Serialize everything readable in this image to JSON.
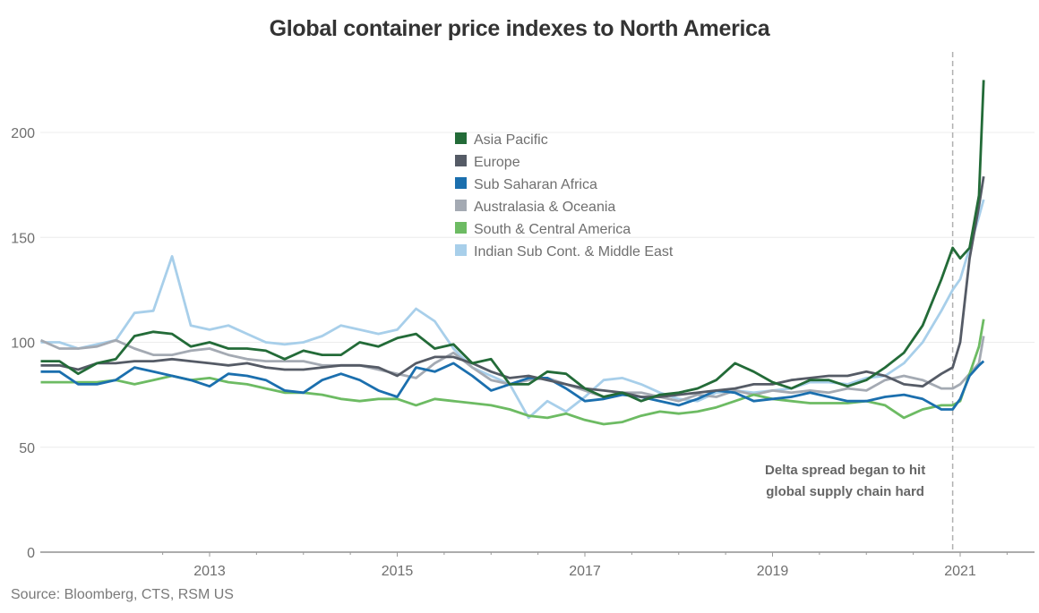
{
  "chart_data": {
    "type": "line",
    "title": "Global container price indexes to North America",
    "source": "Source: Bloomberg, CTS, RSM US",
    "xlabel": "",
    "ylabel": "",
    "xlim": [
      2011.2,
      2021.8
    ],
    "ylim": [
      0,
      230
    ],
    "x_ticks": [
      2013,
      2015,
      2017,
      2019,
      2021
    ],
    "x_tick_labels": [
      "2013",
      "2015",
      "2017",
      "2019",
      "2021"
    ],
    "y_ticks": [
      0,
      50,
      100,
      150,
      200
    ],
    "y_tick_labels": [
      "0",
      "50",
      "100",
      "150",
      "200"
    ],
    "grid": "horizontal",
    "legend_position": "top-center",
    "annotation": {
      "x": 2020.92,
      "lines": [
        "Delta spread began to hit",
        "global supply chain hard"
      ],
      "style": "dashed-vertical"
    },
    "x": [
      2011.2,
      2011.4,
      2011.6,
      2011.8,
      2012.0,
      2012.2,
      2012.4,
      2012.6,
      2012.8,
      2013.0,
      2013.2,
      2013.4,
      2013.6,
      2013.8,
      2014.0,
      2014.2,
      2014.4,
      2014.6,
      2014.8,
      2015.0,
      2015.2,
      2015.4,
      2015.6,
      2015.8,
      2016.0,
      2016.2,
      2016.4,
      2016.6,
      2016.8,
      2017.0,
      2017.2,
      2017.4,
      2017.6,
      2017.8,
      2018.0,
      2018.2,
      2018.4,
      2018.6,
      2018.8,
      2019.0,
      2019.2,
      2019.4,
      2019.6,
      2019.8,
      2020.0,
      2020.2,
      2020.4,
      2020.6,
      2020.8,
      2020.92,
      2021.0,
      2021.1,
      2021.2,
      2021.25
    ],
    "series": [
      {
        "name": "Asia Pacific",
        "color": "#236b38",
        "values": [
          91,
          91,
          85,
          90,
          92,
          103,
          105,
          104,
          98,
          100,
          97,
          97,
          96,
          92,
          96,
          94,
          94,
          100,
          98,
          102,
          104,
          97,
          99,
          90,
          92,
          80,
          80,
          86,
          85,
          78,
          74,
          76,
          72,
          75,
          76,
          78,
          82,
          90,
          86,
          81,
          78,
          82,
          82,
          79,
          82,
          88,
          95,
          108,
          130,
          145,
          140,
          145,
          170,
          225
        ]
      },
      {
        "name": "Europe",
        "color": "#555b66",
        "values": [
          89,
          89,
          87,
          90,
          90,
          91,
          91,
          92,
          91,
          90,
          89,
          90,
          88,
          87,
          87,
          88,
          89,
          89,
          88,
          84,
          90,
          93,
          93,
          90,
          86,
          83,
          84,
          82,
          80,
          78,
          77,
          76,
          74,
          74,
          75,
          76,
          77,
          78,
          80,
          80,
          82,
          83,
          84,
          84,
          86,
          84,
          80,
          79,
          85,
          88,
          100,
          140,
          165,
          179
        ]
      },
      {
        "name": "Sub Saharan Africa",
        "color": "#1b6fae",
        "values": [
          86,
          86,
          80,
          80,
          82,
          88,
          86,
          84,
          82,
          79,
          85,
          84,
          82,
          77,
          76,
          82,
          85,
          82,
          77,
          74,
          88,
          86,
          90,
          84,
          77,
          80,
          83,
          83,
          78,
          72,
          73,
          75,
          74,
          72,
          70,
          73,
          77,
          76,
          72,
          73,
          74,
          76,
          74,
          72,
          72,
          74,
          75,
          73,
          68,
          68,
          73,
          84,
          89,
          91
        ]
      },
      {
        "name": "Australasia & Oceania",
        "color": "#a4aab3",
        "values": [
          101,
          97,
          97,
          98,
          101,
          97,
          94,
          94,
          96,
          97,
          94,
          92,
          91,
          91,
          91,
          89,
          89,
          89,
          87,
          85,
          83,
          90,
          95,
          88,
          82,
          80,
          82,
          83,
          80,
          77,
          74,
          76,
          76,
          74,
          72,
          75,
          74,
          77,
          75,
          77,
          76,
          77,
          76,
          78,
          77,
          82,
          84,
          82,
          78,
          78,
          80,
          85,
          90,
          103
        ]
      },
      {
        "name": "South & Central America",
        "color": "#6dbb63",
        "values": [
          81,
          81,
          81,
          81,
          82,
          80,
          82,
          84,
          82,
          83,
          81,
          80,
          78,
          76,
          76,
          75,
          73,
          72,
          73,
          73,
          70,
          73,
          72,
          71,
          70,
          68,
          65,
          64,
          66,
          63,
          61,
          62,
          65,
          67,
          66,
          67,
          69,
          72,
          75,
          73,
          72,
          71,
          71,
          71,
          72,
          70,
          64,
          68,
          70,
          70,
          72,
          85,
          98,
          111
        ]
      },
      {
        "name": "Indian Sub Cont. & Middle East",
        "color": "#a8cfea",
        "values": [
          100,
          100,
          97,
          99,
          101,
          114,
          115,
          141,
          108,
          106,
          108,
          104,
          100,
          99,
          100,
          103,
          108,
          106,
          104,
          106,
          116,
          110,
          97,
          88,
          84,
          80,
          64,
          72,
          67,
          74,
          82,
          83,
          80,
          76,
          73,
          72,
          76,
          77,
          76,
          77,
          78,
          81,
          81,
          80,
          83,
          84,
          90,
          100,
          115,
          125,
          130,
          145,
          160,
          168
        ]
      }
    ]
  }
}
